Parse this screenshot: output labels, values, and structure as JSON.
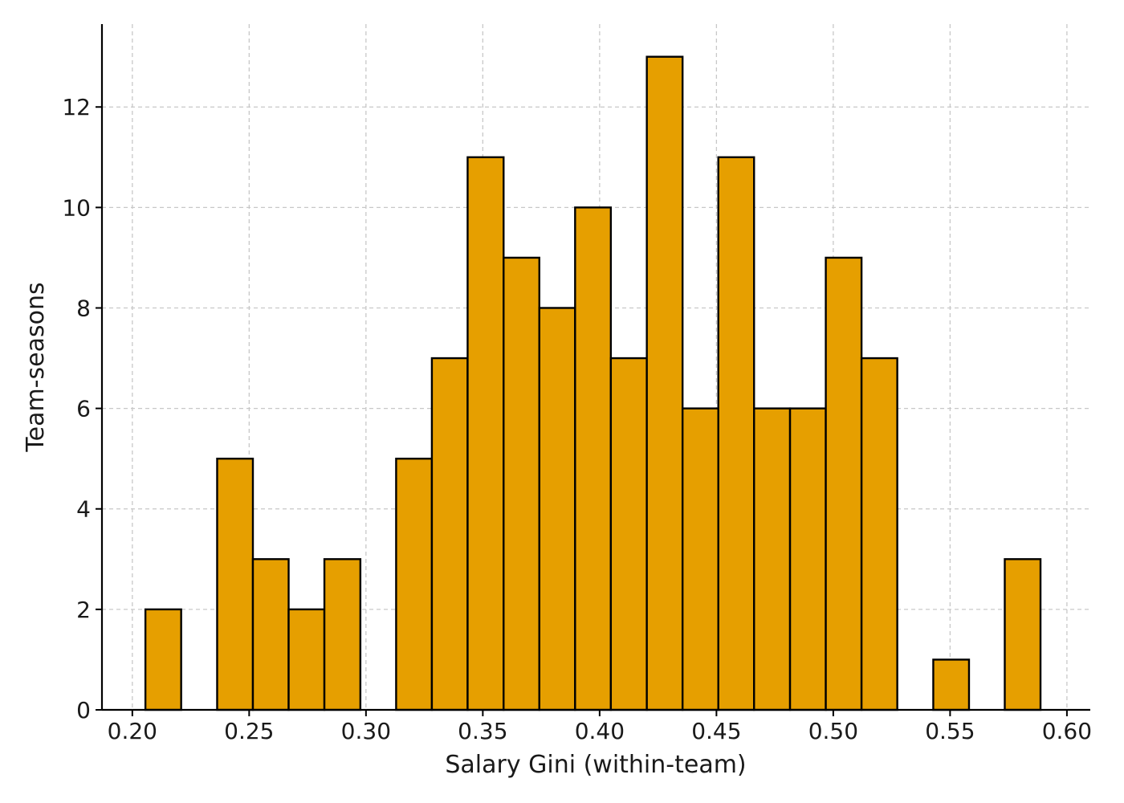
{
  "chart_data": {
    "type": "bar",
    "xlabel": "Salary Gini (within-team)",
    "ylabel": "Team-seasons",
    "xlim": [
      0.187,
      0.61
    ],
    "ylim": [
      0,
      13.65
    ],
    "xticks": [
      0.2,
      0.25,
      0.3,
      0.35,
      0.4,
      0.45,
      0.5,
      0.55,
      0.6
    ],
    "xtick_labels": [
      "0.20",
      "0.25",
      "0.30",
      "0.35",
      "0.40",
      "0.45",
      "0.50",
      "0.55",
      "0.60"
    ],
    "yticks": [
      0,
      2,
      4,
      6,
      8,
      10,
      12
    ],
    "ytick_labels": [
      "0",
      "2",
      "4",
      "6",
      "8",
      "10",
      "12"
    ],
    "grid": true,
    "bar_color": "#E69F00",
    "edge_color": "#000000",
    "bins": [
      {
        "x0": 0.2056,
        "x1": 0.2209,
        "value": 2
      },
      {
        "x0": 0.2209,
        "x1": 0.2363,
        "value": 0
      },
      {
        "x0": 0.2363,
        "x1": 0.2516,
        "value": 5
      },
      {
        "x0": 0.2516,
        "x1": 0.2669,
        "value": 3
      },
      {
        "x0": 0.2669,
        "x1": 0.2822,
        "value": 2
      },
      {
        "x0": 0.2822,
        "x1": 0.2976,
        "value": 3
      },
      {
        "x0": 0.2976,
        "x1": 0.3129,
        "value": 0
      },
      {
        "x0": 0.3129,
        "x1": 0.3282,
        "value": 5
      },
      {
        "x0": 0.3282,
        "x1": 0.3435,
        "value": 7
      },
      {
        "x0": 0.3435,
        "x1": 0.3589,
        "value": 11
      },
      {
        "x0": 0.3589,
        "x1": 0.3742,
        "value": 9
      },
      {
        "x0": 0.3742,
        "x1": 0.3895,
        "value": 8
      },
      {
        "x0": 0.3895,
        "x1": 0.4048,
        "value": 10
      },
      {
        "x0": 0.4048,
        "x1": 0.4202,
        "value": 7
      },
      {
        "x0": 0.4202,
        "x1": 0.4355,
        "value": 13
      },
      {
        "x0": 0.4355,
        "x1": 0.4508,
        "value": 6
      },
      {
        "x0": 0.4508,
        "x1": 0.4661,
        "value": 11
      },
      {
        "x0": 0.4661,
        "x1": 0.4815,
        "value": 6
      },
      {
        "x0": 0.4815,
        "x1": 0.4968,
        "value": 6
      },
      {
        "x0": 0.4968,
        "x1": 0.5121,
        "value": 9
      },
      {
        "x0": 0.5121,
        "x1": 0.5274,
        "value": 7
      },
      {
        "x0": 0.5274,
        "x1": 0.5428,
        "value": 0
      },
      {
        "x0": 0.5428,
        "x1": 0.5581,
        "value": 1
      },
      {
        "x0": 0.5581,
        "x1": 0.5734,
        "value": 0
      },
      {
        "x0": 0.5734,
        "x1": 0.5887,
        "value": 3
      }
    ]
  }
}
